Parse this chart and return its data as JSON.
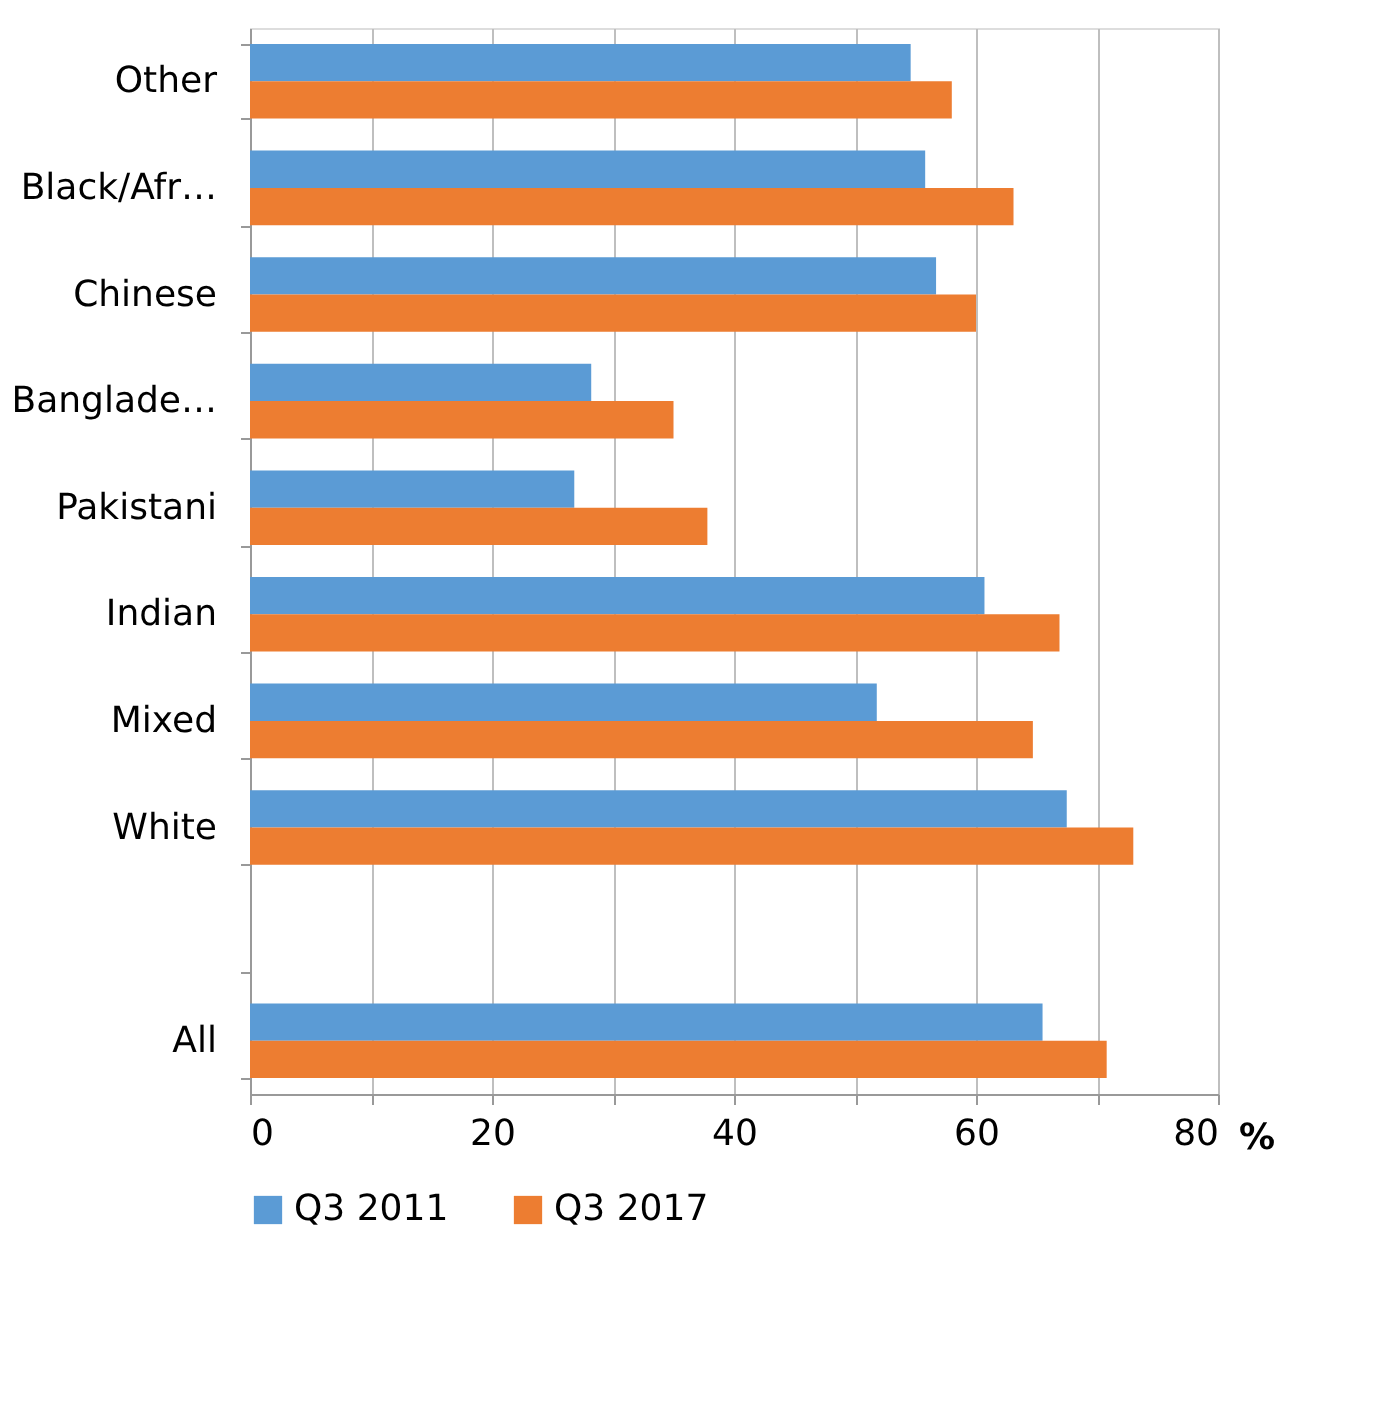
{
  "chart_data": {
    "type": "bar",
    "orientation": "horizontal",
    "xlabel": "%",
    "categories": [
      "Other",
      "Black/Afr…",
      "Chinese",
      "Banglade…",
      "Pakistani",
      "Indian",
      "Mixed",
      "White",
      null,
      "All"
    ],
    "series": [
      {
        "name": "Q3 2011",
        "color": "#5b9bd5",
        "values": [
          54.6,
          55.8,
          56.7,
          28.2,
          26.8,
          60.7,
          51.8,
          67.5,
          null,
          65.5
        ]
      },
      {
        "name": "Q3 2017",
        "color": "#ed7d31",
        "values": [
          58.0,
          63.1,
          60.0,
          35.0,
          37.8,
          66.9,
          64.7,
          73.0,
          null,
          70.8
        ]
      }
    ],
    "xlim": [
      0,
      80
    ],
    "xticks": [
      0,
      {
        "value": 10,
        "label": null
      },
      20,
      {
        "value": 30,
        "label": null
      },
      40,
      {
        "value": 50,
        "label": null
      },
      60,
      {
        "value": 70,
        "label": null
      },
      80
    ],
    "grid": "x",
    "legend": "bottom"
  }
}
